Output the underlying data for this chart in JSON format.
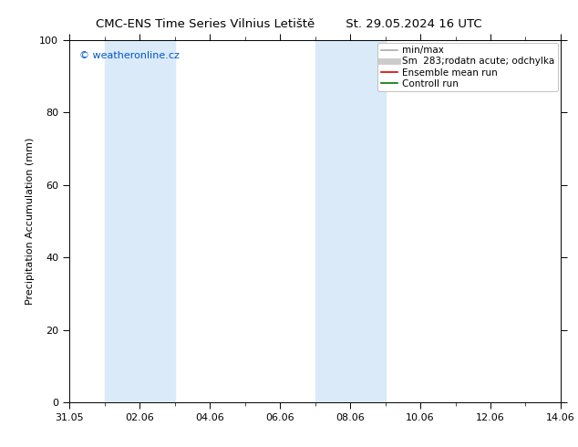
{
  "title_left": "CMC-ENS Time Series Vilnius Letiště",
  "title_right": "St. 29.05.2024 16 UTC",
  "ylabel": "Precipitation Accumulation (mm)",
  "ylim": [
    0,
    100
  ],
  "yticks": [
    0,
    20,
    40,
    60,
    80,
    100
  ],
  "xtick_labels": [
    "31.05",
    "02.06",
    "04.06",
    "06.06",
    "08.06",
    "10.06",
    "12.06",
    "14.06"
  ],
  "xtick_positions": [
    0,
    2,
    4,
    6,
    8,
    10,
    12,
    14
  ],
  "watermark": "© weatheronline.cz",
  "watermark_color": "#0055cc",
  "bg_color": "#ffffff",
  "plot_bg_color": "#ffffff",
  "shaded_bands": [
    {
      "xstart": 1.0,
      "xend": 3.0,
      "color": "#daeaf8"
    },
    {
      "xstart": 7.0,
      "xend": 9.0,
      "color": "#daeaf8"
    }
  ],
  "legend_entries": [
    {
      "label": "min/max",
      "color": "#aaaaaa",
      "linewidth": 1.2,
      "style": "-"
    },
    {
      "label": "Sm  283;rodatn acute; odchylka",
      "color": "#cccccc",
      "linewidth": 5,
      "style": "-"
    },
    {
      "label": "Ensemble mean run",
      "color": "#dd0000",
      "linewidth": 1.2,
      "style": "-"
    },
    {
      "label": "Controll run",
      "color": "#007700",
      "linewidth": 1.2,
      "style": "-"
    }
  ],
  "xmin": 0,
  "xmax": 14,
  "title_fontsize": 9.5,
  "axis_fontsize": 8,
  "tick_fontsize": 8,
  "legend_fontsize": 7.5,
  "watermark_fontsize": 8
}
